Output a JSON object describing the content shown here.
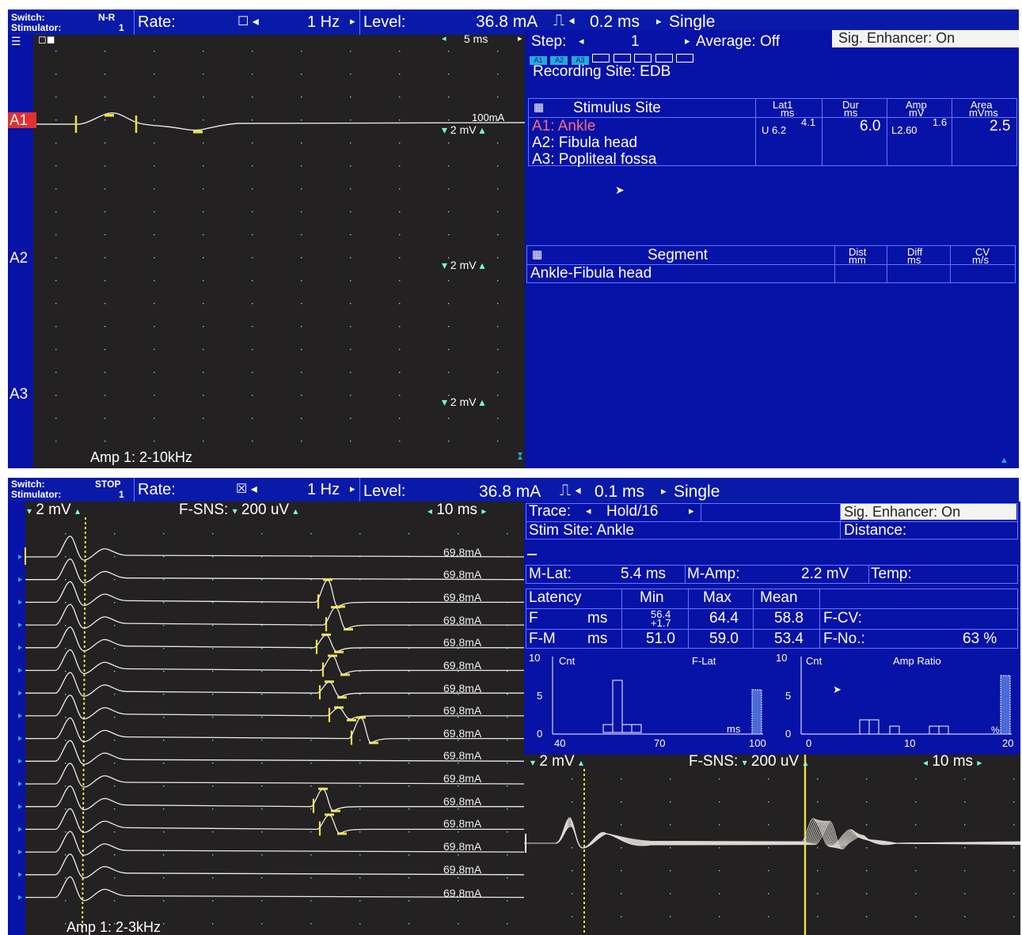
{
  "top": {
    "header": {
      "switch_label": "Switch:",
      "switch_value": "N-R",
      "stim_label": "Stimulator:",
      "stim_value": "1",
      "rate_label": "Rate:",
      "rate_value": "1 Hz",
      "level_label": "Level:",
      "level_value": "36.8 mA",
      "duration": "0.2 ms",
      "mode": "Single"
    },
    "wave": {
      "timebase": "5 ms",
      "trace_labels": [
        "A1",
        "A2",
        "A3"
      ],
      "sens_a1": "2 mV",
      "sens_a2": "2 mV",
      "sens_a3": "2 mV",
      "stim_level": "100mA",
      "amp_filter": "Amp 1: 2-10kHz"
    },
    "info": {
      "step_label": "Step:",
      "step_value": "1",
      "average": "Average: Off",
      "sig_enhancer": "Sig. Enhancer: On",
      "channel_tags": [
        "A1",
        "A2",
        "A3"
      ],
      "recording_site": "Recording Site: EDB",
      "stim_table": {
        "col_site": "Stimulus Site",
        "col_lat": "Lat1",
        "col_lat_unit": "ms",
        "col_dur": "Dur",
        "col_dur_unit": "ms",
        "col_amp": "Amp",
        "col_amp_unit": "mV",
        "col_area": "Area",
        "col_area_unit": "mVms",
        "rows": [
          "A1: Ankle",
          "A2: Fibula head",
          "A3: Popliteal fossa"
        ],
        "lat_main": "U 6.2",
        "lat_sup": "4.1",
        "dur_value": "6.0",
        "amp_main": "L2.60",
        "amp_sup": "1.6",
        "area_value": "2.5"
      },
      "seg_table": {
        "col_segment": "Segment",
        "col_dist": "Dist",
        "col_dist_unit": "mm",
        "col_diff": "Diff",
        "col_diff_unit": "ms",
        "col_cv": "CV",
        "col_cv_unit": "m/s",
        "row1": "Ankle-Fibula head"
      }
    }
  },
  "bottom": {
    "header": {
      "switch_label": "Switch:",
      "switch_value": "STOP",
      "stim_label": "Stimulator:",
      "stim_value": "1",
      "rate_label": "Rate:",
      "rate_value": "1 Hz",
      "level_label": "Level:",
      "level_value": "36.8 mA",
      "duration": "0.1 ms",
      "mode": "Single"
    },
    "wave": {
      "sens_m": "2 mV",
      "fsns_label": "F-SNS:",
      "fsns_value": "200 uV",
      "timebase": "10 ms",
      "stim_levels": [
        "69.8mA",
        "69.8mA",
        "69.8mA",
        "69.8mA",
        "69.8mA",
        "69.8mA",
        "69.8mA",
        "69.8mA",
        "69.8mA",
        "69.8mA",
        "69.8mA",
        "69.8mA",
        "69.8mA",
        "69.8mA",
        "69.8mA",
        "69.8mA"
      ],
      "amp_filter": "Amp 1: 2-3kHz"
    },
    "info": {
      "trace_label": "Trace:",
      "trace_value": "Hold/16",
      "sig_enhancer": "Sig. Enhancer: On",
      "stim_site": "Stim Site: Ankle",
      "distance_label": "Distance:",
      "mlat_label": "M-Lat:",
      "mlat_value": "5.4 ms",
      "mamp_label": "M-Amp:",
      "mamp_value": "2.2 mV",
      "temp_label": "Temp:",
      "lat_table": {
        "col_latency": "Latency",
        "col_min": "Min",
        "col_max": "Max",
        "col_mean": "Mean",
        "f_label": "F",
        "f_unit": "ms",
        "f_min_top": "56.4",
        "f_min_bottom": "+1.7",
        "f_max": "64.4",
        "f_mean": "58.8",
        "fm_label": "F-M",
        "fm_unit": "ms",
        "fm_min": "51.0",
        "fm_max": "59.0",
        "fm_mean": "53.4",
        "fcv_label": "F-CV:",
        "fno_label": "F-No.:",
        "fno_value": "63 %"
      }
    },
    "hist1": {
      "y_label": "Cnt",
      "title": "F-Lat",
      "unit": "ms",
      "y_ticks": [
        "10",
        "5",
        "0"
      ],
      "x_ticks": [
        "40",
        "70",
        "100"
      ]
    },
    "hist2": {
      "y_label": "Cnt",
      "title": "Amp Ratio",
      "unit": "%",
      "y_ticks": [
        "10",
        "5",
        "0"
      ],
      "x_ticks": [
        "0",
        "10",
        "20"
      ]
    },
    "overlay": {
      "sens_m": "2 mV",
      "fsns_label": "F-SNS:",
      "fsns_value": "200 uV",
      "timebase": "10 ms"
    }
  }
}
